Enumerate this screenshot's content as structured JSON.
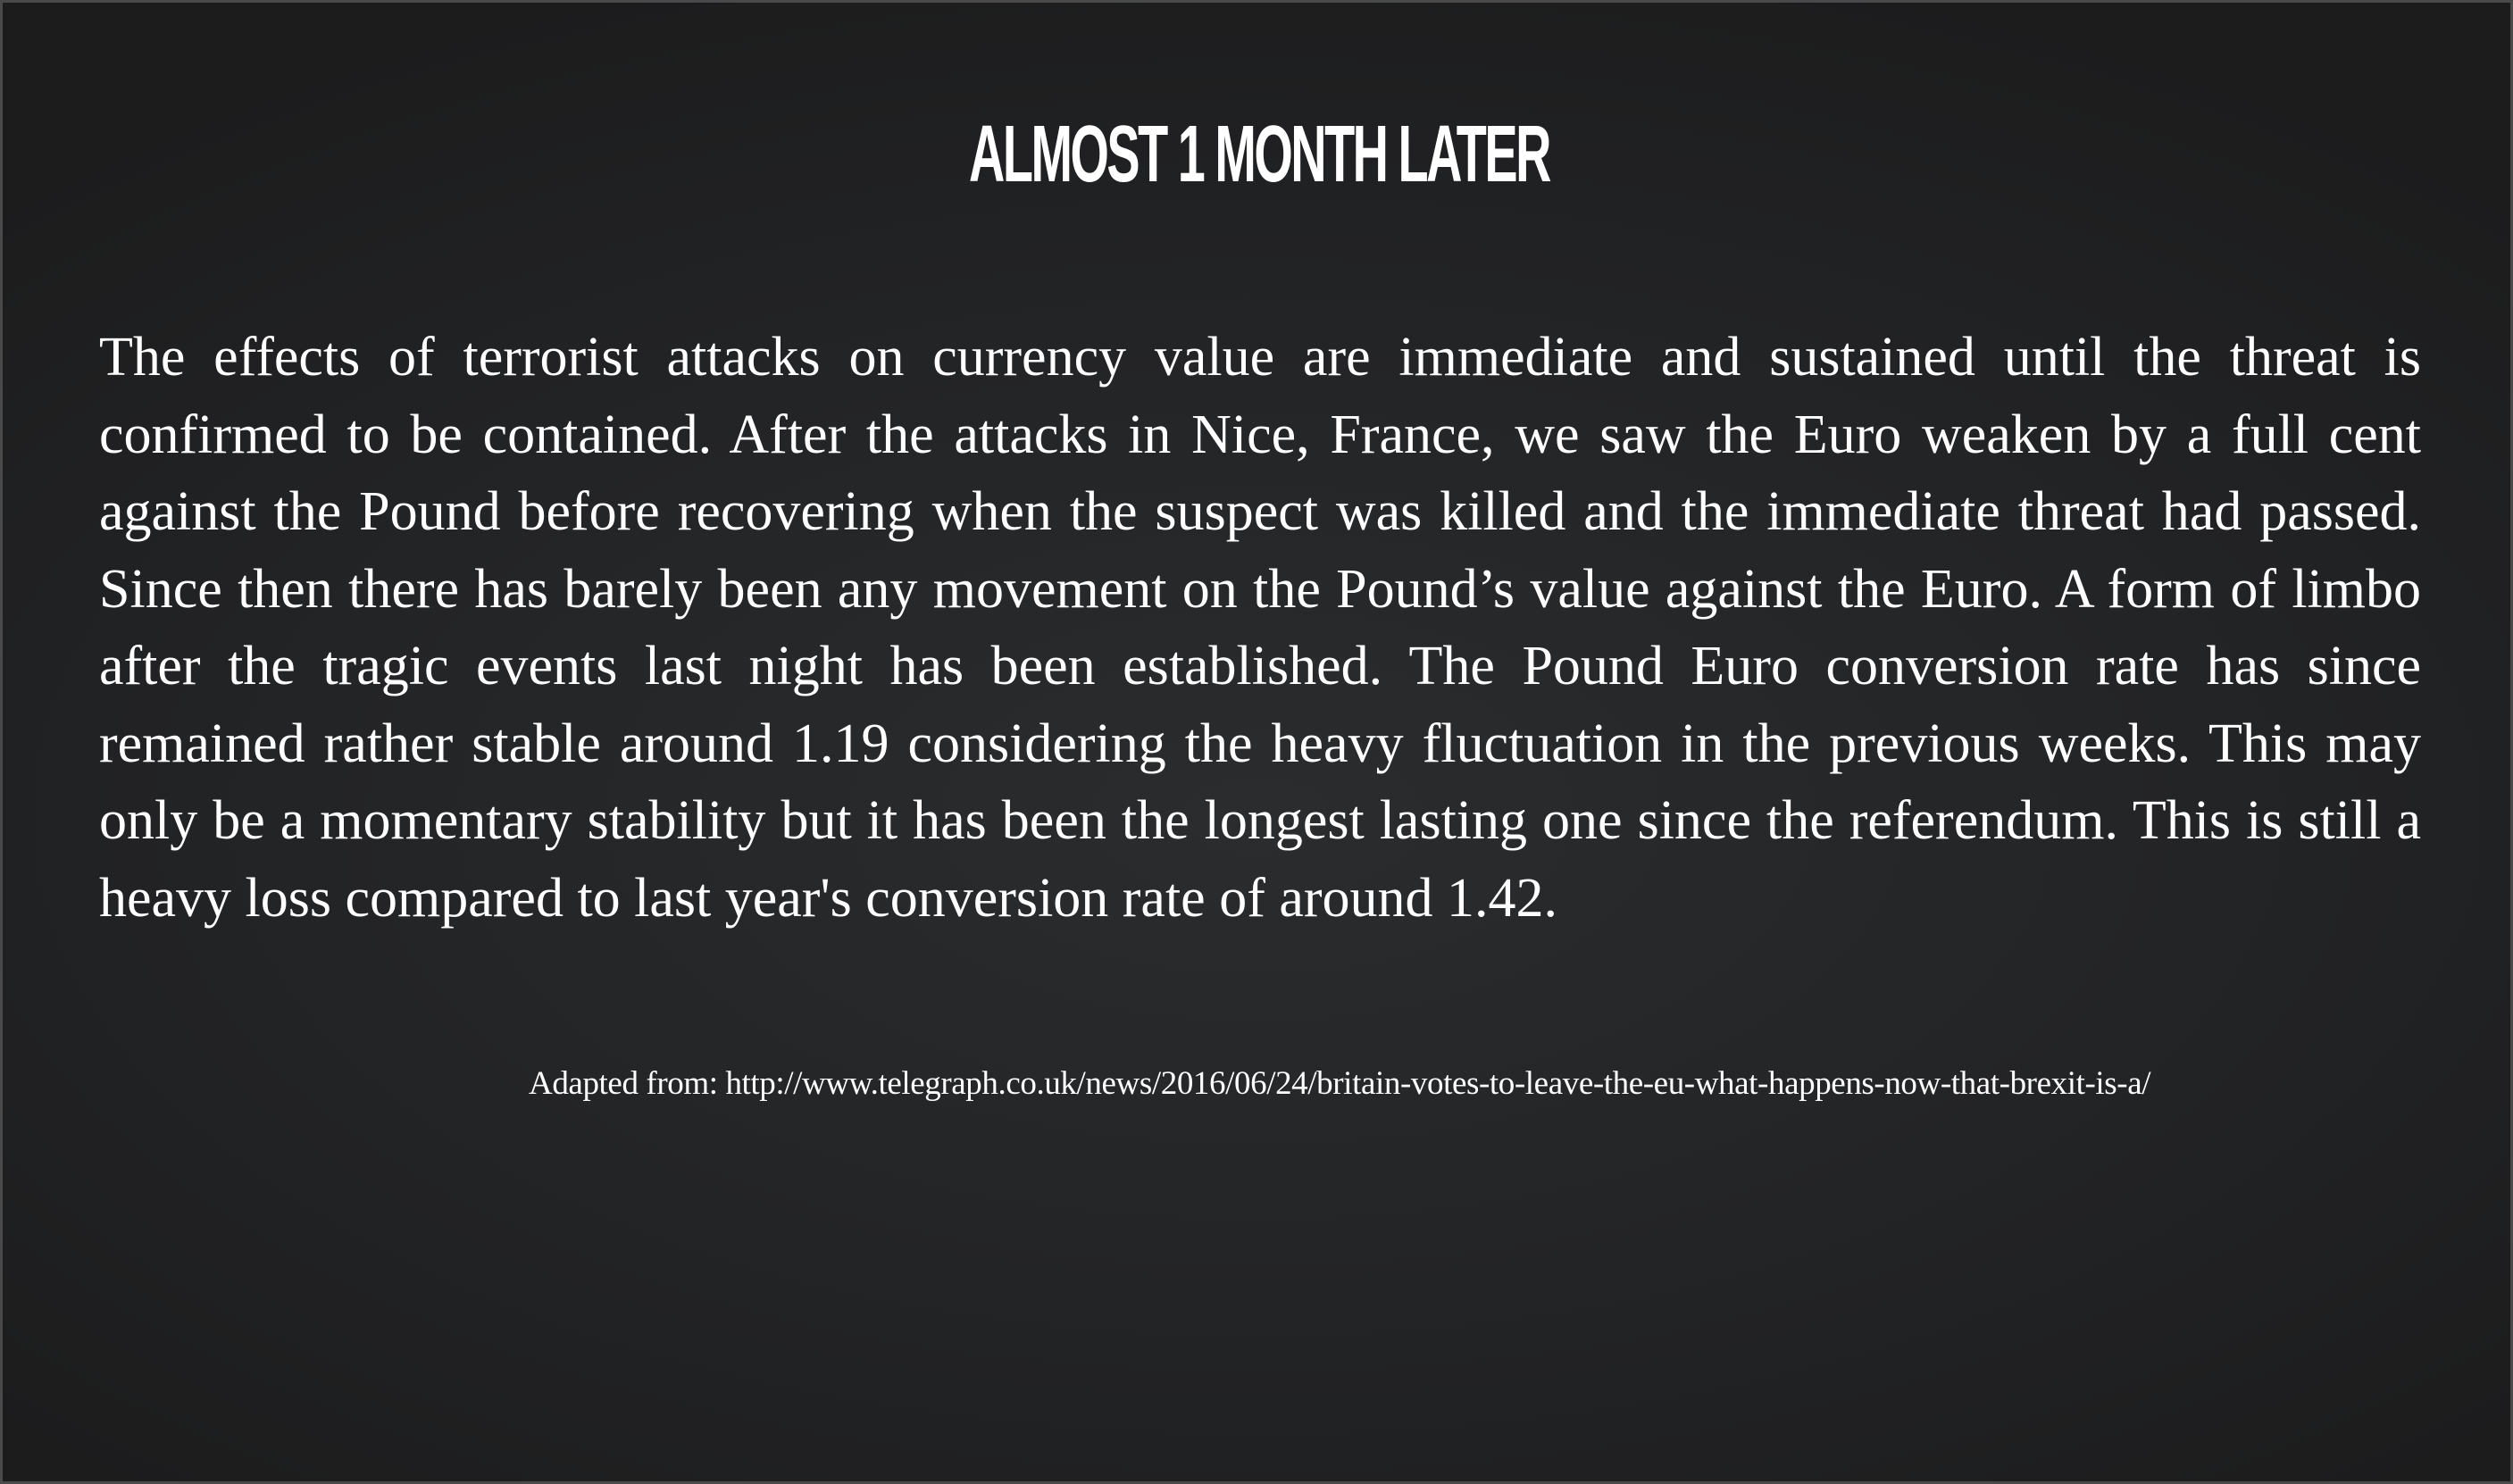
{
  "slide": {
    "title": "ALMOST 1 MONTH LATER",
    "body": "The effects of terrorist attacks on currency value are immediate and sustained until the threat is confirmed to be contained. After the attacks in Nice, France, we saw the Euro weaken by a full cent against the Pound before recovering when the suspect was killed and the immediate threat had passed. Since then there has barely been any movement on the Pound’s value against the Euro. A form of limbo after the tragic events last night has been established. The Pound Euro conversion rate has since remained rather stable around 1.19 considering the heavy fluctuation in the previous weeks. This may only be a momentary stability but it has been the longest lasting one since the referendum. This is still a heavy loss compared to last year's conversion rate of around 1.42.",
    "source": "Adapted from: http://www.telegraph.co.uk/news/2016/06/24/britain-votes-to-leave-the-eu-what-happens-now-that-brexit-is-a/"
  },
  "colors": {
    "background": "#232426",
    "text": "#ffffff",
    "border": "#4a4a4a"
  }
}
